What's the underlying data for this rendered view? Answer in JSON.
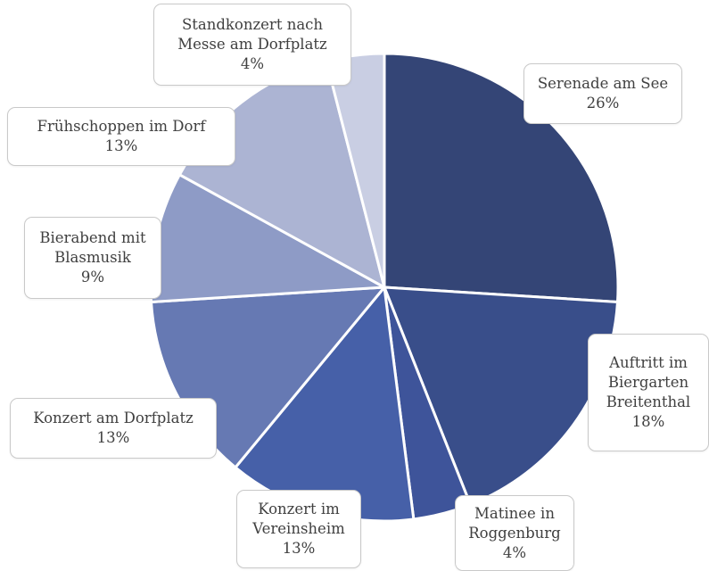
{
  "chart_data": {
    "type": "pie",
    "title": "",
    "start_angle_deg": 0,
    "direction": "clockwise",
    "legend": "none",
    "slices": [
      {
        "label": "Serenade am See",
        "value": 26,
        "percent_label": "26%",
        "color": "#344576"
      },
      {
        "label": "Auftritt im Biergarten Breitenthal",
        "value": 18,
        "percent_label": "18%",
        "color": "#394e8a"
      },
      {
        "label": "Matinee in Roggenburg",
        "value": 4,
        "percent_label": "4%",
        "color": "#3e549a"
      },
      {
        "label": "Konzert im Vereinsheim",
        "value": 13,
        "percent_label": "13%",
        "color": "#4660a8"
      },
      {
        "label": "Konzert am Dorfplatz",
        "value": 13,
        "percent_label": "13%",
        "color": "#6679b3"
      },
      {
        "label": "Bierabend mit Blasmusik",
        "value": 9,
        "percent_label": "9%",
        "color": "#8e9bc6"
      },
      {
        "label": "Frühschoppen im Dorf",
        "value": 13,
        "percent_label": "13%",
        "color": "#acb4d3"
      },
      {
        "label": "Standkonzert nach Messe am Dorfplatz",
        "value": 4,
        "percent_label": "4%",
        "color": "#c9cee3"
      }
    ]
  },
  "labels": [
    {
      "lines": [
        "Serenade am See"
      ],
      "percent": "26%"
    },
    {
      "lines": [
        "Auftritt im",
        "Biergarten",
        "Breitenthal"
      ],
      "percent": "18%"
    },
    {
      "lines": [
        "Matinee in",
        "Roggenburg"
      ],
      "percent": "4%"
    },
    {
      "lines": [
        "Konzert im",
        "Vereinsheim"
      ],
      "percent": "13%"
    },
    {
      "lines": [
        "Konzert am Dorfplatz"
      ],
      "percent": "13%"
    },
    {
      "lines": [
        "Bierabend mit",
        "Blasmusik"
      ],
      "percent": "9%"
    },
    {
      "lines": [
        "Frühschoppen im Dorf"
      ],
      "percent": "13%"
    },
    {
      "lines": [
        "Standkonzert nach",
        "Messe am Dorfplatz"
      ],
      "percent": "4%"
    }
  ]
}
